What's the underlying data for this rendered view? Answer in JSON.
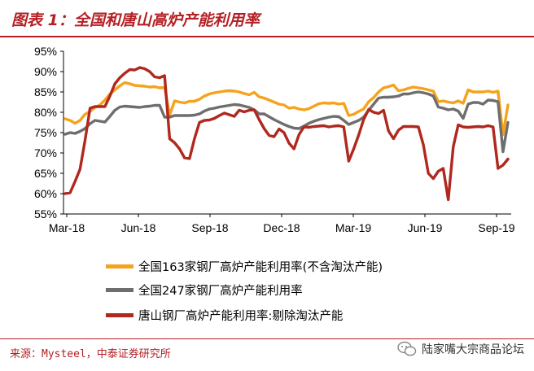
{
  "header": {
    "title": "图表 1：全国和唐山高炉产能利用率"
  },
  "footer": {
    "source": "来源：Mysteel，中泰证券研究所",
    "watermark": "陆家嘴大宗商品论坛"
  },
  "colors": {
    "accent": "#b52025",
    "orange": "#f6a21c",
    "gray": "#6e6e6e",
    "red": "#b0281e"
  },
  "chart_data": {
    "type": "line",
    "x_tick_labels": [
      "Mar-18",
      "Jun-18",
      "Sep-18",
      "Dec-18",
      "Mar-19",
      "Jun-19",
      "Sep-19"
    ],
    "y_tick_labels": [
      "55%",
      "60%",
      "65%",
      "70%",
      "75%",
      "80%",
      "85%",
      "90%",
      "95%"
    ],
    "ylim": [
      55,
      95
    ],
    "grid": false,
    "legend_position": "bottom",
    "series": [
      {
        "name": "全国163家钢厂高炉产能利用率(不含淘汰产能)",
        "color": "#f6a21c",
        "values": [
          78.4,
          78.0,
          77.3,
          78.0,
          79.5,
          80.2,
          81.2,
          81.8,
          83.0,
          84.5,
          85.5,
          86.5,
          87.3,
          87.0,
          86.6,
          86.5,
          86.4,
          86.2,
          86.3,
          86.0,
          86.1,
          79.3,
          82.8,
          82.5,
          82.3,
          82.7,
          82.7,
          83.2,
          84.0,
          84.5,
          84.8,
          85.0,
          85.2,
          85.3,
          85.2,
          85.0,
          84.6,
          84.3,
          84.9,
          83.8,
          83.5,
          83.0,
          82.5,
          82.0,
          81.8,
          81.0,
          81.2,
          80.8,
          80.6,
          80.9,
          81.5,
          82.1,
          82.3,
          82.2,
          82.3,
          82.0,
          82.2,
          79.2,
          79.5,
          80.2,
          80.8,
          82.6,
          83.6,
          85.0,
          86.0,
          86.3,
          86.7,
          85.3,
          85.5,
          85.9,
          86.2,
          86.0,
          85.8,
          85.5,
          85.2,
          82.6,
          82.8,
          82.5,
          82.3,
          82.8,
          82.2,
          85.5,
          85.0,
          85.0,
          85.0,
          85.2,
          84.9,
          85.2,
          74.5,
          81.8
        ]
      },
      {
        "name": "全国247家钢厂高炉产能利用率",
        "color": "#6e6e6e",
        "values": [
          74.6,
          75.0,
          74.8,
          75.3,
          76.0,
          77.2,
          78.0,
          77.8,
          77.6,
          79.0,
          80.5,
          81.3,
          81.5,
          81.4,
          81.3,
          81.2,
          81.4,
          81.5,
          81.7,
          81.7,
          78.8,
          78.8,
          79.2,
          79.2,
          79.2,
          79.2,
          79.3,
          79.6,
          80.3,
          80.8,
          81.0,
          81.3,
          81.5,
          81.7,
          81.9,
          81.8,
          81.5,
          81.2,
          80.6,
          79.6,
          79.6,
          78.9,
          78.2,
          77.6,
          77.0,
          76.5,
          76.1,
          76.0,
          76.6,
          77.3,
          77.8,
          78.2,
          78.5,
          78.8,
          79.0,
          78.9,
          78.0,
          77.0,
          77.5,
          78.0,
          78.8,
          80.5,
          82.0,
          83.5,
          83.7,
          83.7,
          83.8,
          84.0,
          84.5,
          84.5,
          84.8,
          85.0,
          84.8,
          84.5,
          84.0,
          81.3,
          81.0,
          80.6,
          80.8,
          80.3,
          78.5,
          82.0,
          82.4,
          82.4,
          82.0,
          83.0,
          82.9,
          82.6,
          70.3,
          77.5
        ]
      },
      {
        "name": "唐山钢厂高炉产能利用率:剔除淘汰产能",
        "color": "#b0281e",
        "values": [
          60.0,
          60.2,
          63.0,
          66.0,
          73.0,
          81.0,
          81.4,
          81.4,
          81.4,
          84.0,
          87.0,
          88.5,
          89.6,
          90.5,
          90.4,
          91.0,
          90.7,
          90.0,
          88.7,
          88.5,
          89.0,
          73.5,
          72.5,
          71.0,
          68.8,
          68.6,
          73.5,
          77.5,
          78.0,
          78.1,
          78.5,
          79.2,
          79.8,
          79.4,
          79.0,
          80.5,
          80.1,
          80.5,
          80.6,
          78.2,
          76.0,
          74.3,
          74.0,
          75.9,
          75.0,
          72.4,
          71.0,
          74.5,
          76.4,
          76.3,
          76.5,
          76.6,
          76.7,
          76.4,
          76.6,
          76.7,
          76.4,
          68.0,
          71.0,
          74.4,
          78.2,
          80.7,
          80.0,
          79.7,
          80.5,
          75.4,
          73.5,
          75.6,
          76.5,
          76.5,
          76.5,
          76.4,
          72.0,
          65.0,
          63.7,
          65.5,
          66.2,
          58.5,
          71.5,
          76.9,
          76.4,
          76.3,
          76.4,
          76.5,
          76.4,
          76.7,
          76.4,
          66.2,
          67.0,
          68.5
        ]
      }
    ]
  }
}
